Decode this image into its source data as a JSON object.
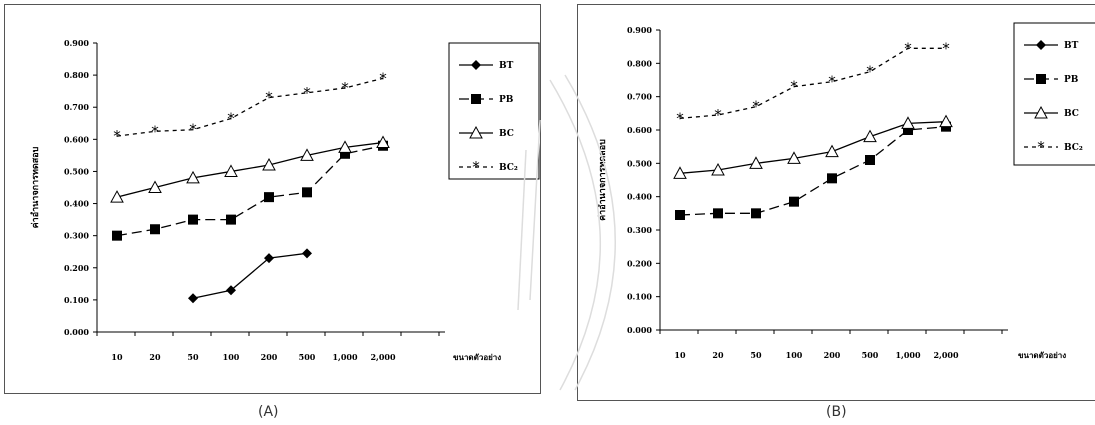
{
  "captions": {
    "a": "(A)",
    "b": "(B)"
  },
  "legend_labels": {
    "bt": "BT",
    "pb": "PB",
    "bc": "BC",
    "bc2": "BC₂"
  },
  "colors": {
    "line": "#000000",
    "text": "#000000",
    "frame": "#555555"
  },
  "chart_data": [
    {
      "type": "line",
      "title": "",
      "ylabel": "ค่าอำนาจการทดสอบ",
      "xlabel": "ขนาดตัวอย่าง",
      "categories": [
        "10",
        "20",
        "50",
        "100",
        "200",
        "500",
        "1,000",
        "2,000"
      ],
      "yticks": [
        "0.000",
        "0.100",
        "0.200",
        "0.300",
        "0.400",
        "0.500",
        "0.600",
        "0.700",
        "0.800",
        "0.900"
      ],
      "ylim": [
        0,
        0.9
      ],
      "grid": false,
      "legend": "right",
      "series": [
        {
          "name": "BT",
          "marker": "diamond",
          "dash": "solid",
          "values": [
            null,
            null,
            0.105,
            0.13,
            0.23,
            0.245,
            null,
            null
          ]
        },
        {
          "name": "PB",
          "marker": "square",
          "dash": "dashed",
          "values": [
            0.3,
            0.32,
            0.35,
            0.35,
            0.42,
            0.435,
            0.555,
            0.58
          ]
        },
        {
          "name": "BC",
          "marker": "triangle",
          "dash": "solid",
          "values": [
            0.42,
            0.45,
            0.48,
            0.5,
            0.52,
            0.55,
            0.575,
            0.59
          ]
        },
        {
          "name": "BC₂",
          "marker": "asterisk",
          "dash": "dotted",
          "values": [
            0.61,
            0.625,
            0.63,
            0.665,
            0.73,
            0.745,
            0.76,
            0.79
          ]
        }
      ]
    },
    {
      "type": "line",
      "title": "",
      "ylabel": "ค่าอำนาจการทดสอบ",
      "xlabel": "ขนาดตัวอย่าง",
      "categories": [
        "10",
        "20",
        "50",
        "100",
        "200",
        "500",
        "1,000",
        "2,000"
      ],
      "yticks": [
        "0.000",
        "0.100",
        "0.200",
        "0.300",
        "0.400",
        "0.500",
        "0.600",
        "0.700",
        "0.800",
        "0.900"
      ],
      "ylim": [
        0,
        0.9
      ],
      "grid": false,
      "legend": "right",
      "series": [
        {
          "name": "BT",
          "marker": "diamond",
          "dash": "solid",
          "values": [
            null,
            null,
            null,
            null,
            null,
            null,
            null,
            null
          ]
        },
        {
          "name": "PB",
          "marker": "square",
          "dash": "dashed",
          "values": [
            0.345,
            0.35,
            0.35,
            0.385,
            0.455,
            0.51,
            0.6,
            0.61
          ]
        },
        {
          "name": "BC",
          "marker": "triangle",
          "dash": "solid",
          "values": [
            0.47,
            0.48,
            0.5,
            0.515,
            0.535,
            0.58,
            0.62,
            0.625
          ]
        },
        {
          "name": "BC₂",
          "marker": "asterisk",
          "dash": "dotted",
          "values": [
            0.635,
            0.645,
            0.67,
            0.73,
            0.745,
            0.775,
            0.845,
            0.845
          ]
        }
      ]
    }
  ]
}
